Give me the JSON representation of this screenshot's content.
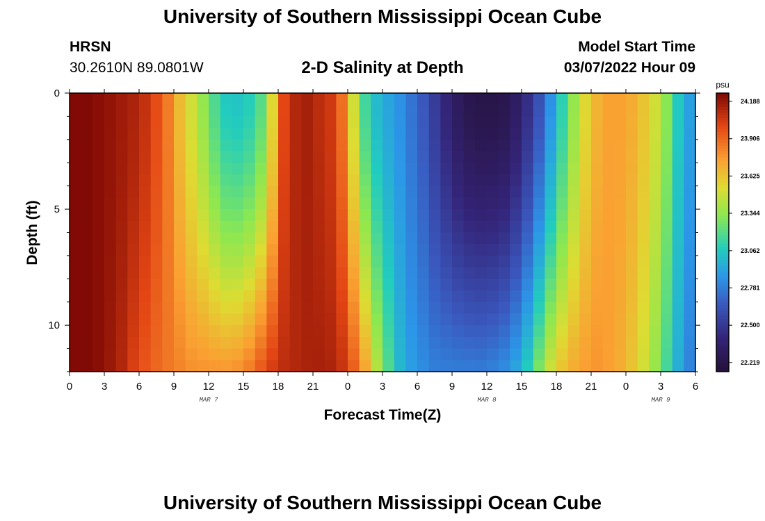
{
  "header": {
    "title": "University of Southern Mississippi Ocean Cube",
    "station": "HRSN",
    "coordinates": "30.2610N  89.0801W",
    "subtitle": "2-D Salinity at Depth",
    "model_start_label": "Model Start Time",
    "model_start_value": "03/07/2022 Hour 09"
  },
  "footer": {
    "title": "University of Southern Mississippi Ocean Cube"
  },
  "chart_data": {
    "type": "heatmap",
    "xlabel": "Forecast Time(Z)",
    "ylabel": "Depth (ft)",
    "colorbar_unit": "psu",
    "x_tick_labels": [
      "0",
      "3",
      "6",
      "9",
      "12",
      "15",
      "18",
      "21",
      "0",
      "3",
      "6",
      "9",
      "12",
      "15",
      "18",
      "21",
      "0",
      "3",
      "6"
    ],
    "date_labels": [
      {
        "text": "MAR 7",
        "hour_index": 12
      },
      {
        "text": "MAR 8",
        "hour_index": 36
      },
      {
        "text": "MAR 9",
        "hour_index": 51
      }
    ],
    "x_range_hours": [
      0,
      54
    ],
    "y_tick_labels": [
      "0",
      "5",
      "10"
    ],
    "ylim": [
      0,
      12
    ],
    "y_inverted": true,
    "colorbar_ticks": [
      "24.188",
      "23.906",
      "23.625",
      "23.344",
      "23.062",
      "22.781",
      "22.500",
      "22.219"
    ],
    "value_range": [
      22.15,
      24.25
    ],
    "depth_levels_ft": [
      0.0,
      0.5,
      1.0,
      1.5,
      2.0,
      2.5,
      3.0,
      3.5,
      4.0,
      4.5,
      5.0,
      5.5,
      6.0,
      6.5,
      7.0,
      7.5,
      8.0,
      8.5,
      9.0,
      9.5,
      10.0,
      10.5,
      11.0,
      11.5
    ],
    "surface_salinity_by_hour": [
      24.24,
      24.24,
      24.22,
      24.2,
      24.17,
      24.14,
      24.08,
      23.98,
      23.85,
      23.65,
      23.5,
      23.35,
      23.18,
      23.06,
      23.04,
      23.08,
      23.2,
      23.55,
      24.0,
      24.12,
      24.15,
      24.1,
      24.05,
      23.88,
      23.5,
      23.15,
      23.0,
      22.92,
      22.85,
      22.75,
      22.65,
      22.52,
      22.4,
      22.3,
      22.24,
      22.22,
      22.22,
      22.24,
      22.32,
      22.45,
      22.62,
      22.85,
      23.1,
      23.35,
      23.55,
      23.68,
      23.74,
      23.74,
      23.7,
      23.62,
      23.5,
      23.32,
      23.06,
      22.9
    ],
    "bottom_salinity_by_hour": [
      24.24,
      24.24,
      24.22,
      24.18,
      24.12,
      24.02,
      23.95,
      23.9,
      23.86,
      23.83,
      23.8,
      23.8,
      23.8,
      23.8,
      23.82,
      23.88,
      23.98,
      24.06,
      24.1,
      24.12,
      24.14,
      24.15,
      24.14,
      24.08,
      23.95,
      23.75,
      23.45,
      23.2,
      23.0,
      22.9,
      22.84,
      22.8,
      22.8,
      22.8,
      22.8,
      22.8,
      22.82,
      22.86,
      22.95,
      23.1,
      23.32,
      23.52,
      23.65,
      23.72,
      23.76,
      23.78,
      23.75,
      23.7,
      23.62,
      23.5,
      23.35,
      23.15,
      22.95,
      22.8
    ]
  }
}
